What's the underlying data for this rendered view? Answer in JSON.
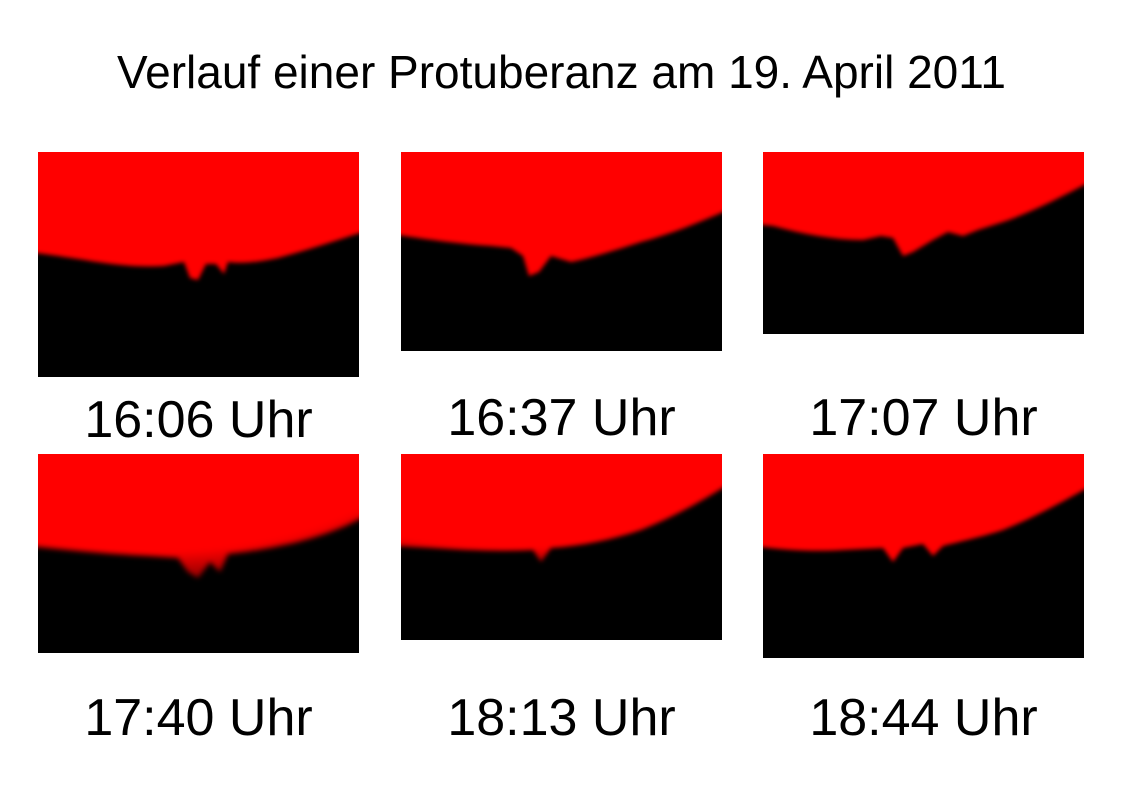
{
  "title": "Verlauf einer Protuberanz am 19. April 2011",
  "colors": {
    "sun": "#ff0000",
    "sky": "#000000",
    "background": "#ffffff"
  },
  "frames": [
    {
      "caption": "16:06 Uhr"
    },
    {
      "caption": "16:37 Uhr"
    },
    {
      "caption": "17:07 Uhr"
    },
    {
      "caption": "17:40 Uhr"
    },
    {
      "caption": "18:13 Uhr"
    },
    {
      "caption": "18:44 Uhr"
    }
  ]
}
